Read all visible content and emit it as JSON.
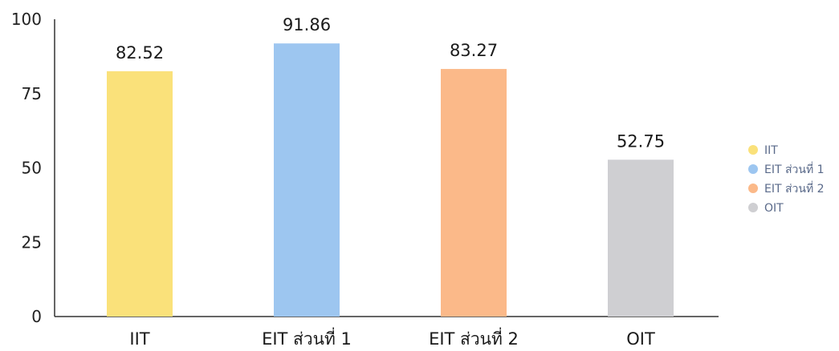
{
  "chart_data": {
    "type": "bar",
    "categories": [
      "IIT",
      "EIT ส่วนที่ 1",
      "EIT ส่วนที่ 2",
      "OIT"
    ],
    "values": [
      82.52,
      91.86,
      83.27,
      52.75
    ],
    "data_labels": [
      "82.52",
      "91.86",
      "83.27",
      "52.75"
    ],
    "colors": [
      "#fae17a",
      "#9dc6f0",
      "#fbb989",
      "#cfcfd2"
    ],
    "ylim": [
      0,
      100
    ],
    "yticks": [
      0,
      25,
      50,
      75,
      100
    ],
    "ytick_labels": [
      "0",
      "25",
      "50",
      "75",
      "100"
    ],
    "legend": {
      "position": "right",
      "entries": [
        "IIT",
        "EIT ส่วนที่ 1",
        "EIT ส่วนที่ 2",
        "OIT"
      ]
    },
    "grid": false
  }
}
